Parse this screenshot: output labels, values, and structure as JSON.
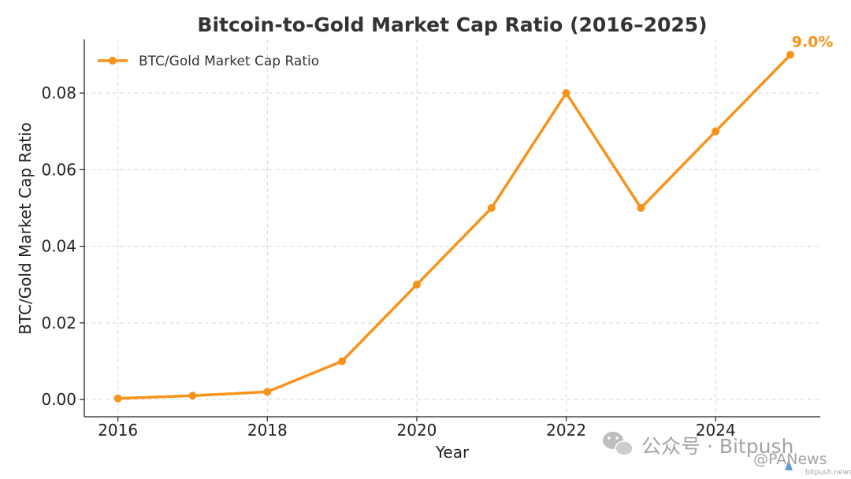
{
  "chart_data": {
    "type": "line",
    "title": "Bitcoin-to-Gold Market Cap Ratio (2016–2025)",
    "xlabel": "Year",
    "ylabel": "BTC/Gold Market Cap Ratio",
    "xlim": [
      2015.55,
      2025.4
    ],
    "ylim": [
      -0.0045,
      0.094
    ],
    "x_ticks": [
      2016,
      2018,
      2020,
      2022,
      2024
    ],
    "x_tick_labels": [
      "2016",
      "2018",
      "2020",
      "2022",
      "2024"
    ],
    "y_ticks": [
      0.0,
      0.02,
      0.04,
      0.06,
      0.08
    ],
    "y_tick_labels": [
      "0.00",
      "0.02",
      "0.04",
      "0.06",
      "0.08"
    ],
    "grid": true,
    "legend_position": "top-left",
    "series": [
      {
        "name": "BTC/Gold Market Cap Ratio",
        "color": "#f7931a",
        "x": [
          2016,
          2017,
          2018,
          2019,
          2020,
          2021,
          2022,
          2023,
          2024,
          2025
        ],
        "y": [
          0.0003,
          0.001,
          0.002,
          0.01,
          0.03,
          0.05,
          0.08,
          0.05,
          0.07,
          0.09
        ]
      }
    ],
    "annotations": [
      {
        "text": "9.0%",
        "x": 2025,
        "y": 0.09,
        "color": "#f7931a"
      }
    ]
  },
  "watermark": {
    "wechat_text": "公众号 · Bitpush",
    "panews_text": "@PANews",
    "panews_sub": "bitpush.news"
  }
}
